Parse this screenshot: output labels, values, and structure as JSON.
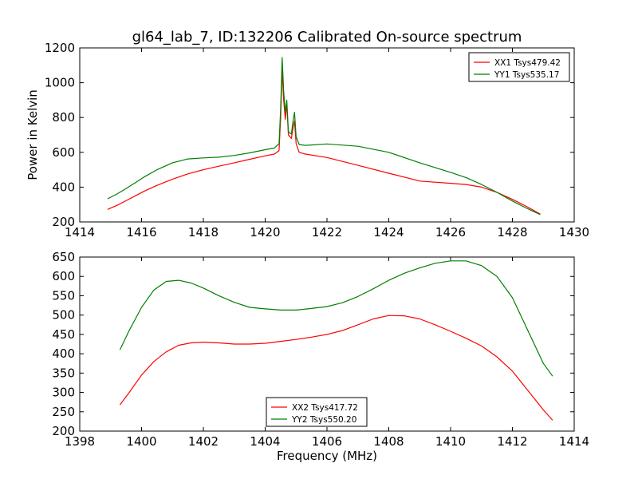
{
  "figure": {
    "title": "gl64_lab_7, ID:132206 Calibrated On-source spectrum"
  },
  "chart_data": [
    {
      "type": "line",
      "title": "gl64_lab_7, ID:132206 Calibrated On-source spectrum",
      "xlabel": "",
      "ylabel": "Power in Kelvin",
      "xlim": [
        1414,
        1430
      ],
      "ylim": [
        200,
        1200
      ],
      "xticks": [
        1414,
        1416,
        1418,
        1420,
        1422,
        1424,
        1426,
        1428,
        1430
      ],
      "yticks": [
        200,
        400,
        600,
        800,
        1000,
        1200
      ],
      "grid": false,
      "legend_position": "top-right",
      "series": [
        {
          "name": "XX1 Tsys479.42",
          "color": "#ff0000",
          "points": [
            [
              1414.9,
              272
            ],
            [
              1415.2,
              295
            ],
            [
              1415.5,
              322
            ],
            [
              1415.8,
              350
            ],
            [
              1416.1,
              378
            ],
            [
              1416.5,
              410
            ],
            [
              1417.0,
              446
            ],
            [
              1417.5,
              476
            ],
            [
              1418.0,
              500
            ],
            [
              1418.5,
              520
            ],
            [
              1419.0,
              540
            ],
            [
              1419.5,
              560
            ],
            [
              1420.0,
              580
            ],
            [
              1420.3,
              590
            ],
            [
              1420.45,
              610
            ],
            [
              1420.5,
              800
            ],
            [
              1420.55,
              1075
            ],
            [
              1420.6,
              900
            ],
            [
              1420.65,
              790
            ],
            [
              1420.7,
              880
            ],
            [
              1420.75,
              700
            ],
            [
              1420.8,
              690
            ],
            [
              1420.85,
              680
            ],
            [
              1420.9,
              740
            ],
            [
              1420.95,
              780
            ],
            [
              1421.0,
              650
            ],
            [
              1421.1,
              600
            ],
            [
              1421.3,
              590
            ],
            [
              1422.0,
              570
            ],
            [
              1423.0,
              525
            ],
            [
              1424.0,
              480
            ],
            [
              1425.0,
              435
            ],
            [
              1426.0,
              422
            ],
            [
              1426.5,
              415
            ],
            [
              1427.0,
              400
            ],
            [
              1427.5,
              370
            ],
            [
              1428.0,
              330
            ],
            [
              1428.5,
              285
            ],
            [
              1428.9,
              245
            ]
          ]
        },
        {
          "name": "YY1 Tsys535.17",
          "color": "#008000",
          "points": [
            [
              1414.9,
              333
            ],
            [
              1415.2,
              360
            ],
            [
              1415.5,
              392
            ],
            [
              1415.8,
              425
            ],
            [
              1416.1,
              460
            ],
            [
              1416.5,
              500
            ],
            [
              1417.0,
              540
            ],
            [
              1417.5,
              562
            ],
            [
              1418.0,
              568
            ],
            [
              1418.5,
              572
            ],
            [
              1419.0,
              582
            ],
            [
              1419.5,
              597
            ],
            [
              1420.0,
              615
            ],
            [
              1420.3,
              625
            ],
            [
              1420.45,
              650
            ],
            [
              1420.5,
              850
            ],
            [
              1420.55,
              1145
            ],
            [
              1420.6,
              950
            ],
            [
              1420.65,
              830
            ],
            [
              1420.7,
              900
            ],
            [
              1420.75,
              720
            ],
            [
              1420.8,
              710
            ],
            [
              1420.85,
              705
            ],
            [
              1420.9,
              780
            ],
            [
              1420.95,
              830
            ],
            [
              1421.0,
              690
            ],
            [
              1421.1,
              645
            ],
            [
              1421.3,
              640
            ],
            [
              1422.0,
              648
            ],
            [
              1423.0,
              635
            ],
            [
              1424.0,
              600
            ],
            [
              1425.0,
              540
            ],
            [
              1426.0,
              485
            ],
            [
              1426.5,
              455
            ],
            [
              1427.0,
              415
            ],
            [
              1427.5,
              370
            ],
            [
              1428.0,
              320
            ],
            [
              1428.5,
              275
            ],
            [
              1428.9,
              242
            ]
          ]
        }
      ]
    },
    {
      "type": "line",
      "title": "",
      "xlabel": "Frequency (MHz)",
      "ylabel": "",
      "xlim": [
        1398,
        1414
      ],
      "ylim": [
        200,
        650
      ],
      "xticks": [
        1398,
        1400,
        1402,
        1404,
        1406,
        1408,
        1410,
        1412,
        1414
      ],
      "yticks": [
        200,
        250,
        300,
        350,
        400,
        450,
        500,
        550,
        600,
        650
      ],
      "grid": false,
      "legend_position": "bottom-center",
      "series": [
        {
          "name": "XX2 Tsys417.72",
          "color": "#ff0000",
          "points": [
            [
              1399.3,
              268
            ],
            [
              1399.6,
              300
            ],
            [
              1400.0,
              345
            ],
            [
              1400.4,
              380
            ],
            [
              1400.8,
              405
            ],
            [
              1401.2,
              422
            ],
            [
              1401.6,
              428
            ],
            [
              1402.0,
              430
            ],
            [
              1402.5,
              428
            ],
            [
              1403.0,
              425
            ],
            [
              1403.5,
              425
            ],
            [
              1404.0,
              427
            ],
            [
              1404.5,
              432
            ],
            [
              1405.0,
              437
            ],
            [
              1405.5,
              443
            ],
            [
              1406.0,
              450
            ],
            [
              1406.5,
              460
            ],
            [
              1407.0,
              475
            ],
            [
              1407.5,
              490
            ],
            [
              1408.0,
              499
            ],
            [
              1408.5,
              498
            ],
            [
              1409.0,
              490
            ],
            [
              1409.5,
              475
            ],
            [
              1410.0,
              458
            ],
            [
              1410.5,
              440
            ],
            [
              1411.0,
              420
            ],
            [
              1411.5,
              392
            ],
            [
              1412.0,
              355
            ],
            [
              1412.5,
              305
            ],
            [
              1413.0,
              255
            ],
            [
              1413.3,
              228
            ]
          ]
        },
        {
          "name": "YY2 Tsys550.20",
          "color": "#008000",
          "points": [
            [
              1399.3,
              410
            ],
            [
              1399.6,
              460
            ],
            [
              1400.0,
              520
            ],
            [
              1400.4,
              565
            ],
            [
              1400.8,
              587
            ],
            [
              1401.2,
              590
            ],
            [
              1401.6,
              583
            ],
            [
              1402.0,
              570
            ],
            [
              1402.5,
              550
            ],
            [
              1403.0,
              533
            ],
            [
              1403.5,
              520
            ],
            [
              1404.0,
              516
            ],
            [
              1404.5,
              513
            ],
            [
              1405.0,
              513
            ],
            [
              1405.5,
              517
            ],
            [
              1406.0,
              522
            ],
            [
              1406.5,
              532
            ],
            [
              1407.0,
              548
            ],
            [
              1407.5,
              568
            ],
            [
              1408.0,
              590
            ],
            [
              1408.5,
              608
            ],
            [
              1409.0,
              622
            ],
            [
              1409.5,
              634
            ],
            [
              1410.0,
              640
            ],
            [
              1410.5,
              640
            ],
            [
              1411.0,
              628
            ],
            [
              1411.5,
              600
            ],
            [
              1412.0,
              545
            ],
            [
              1412.5,
              460
            ],
            [
              1413.0,
              375
            ],
            [
              1413.3,
              342
            ]
          ]
        }
      ]
    }
  ]
}
